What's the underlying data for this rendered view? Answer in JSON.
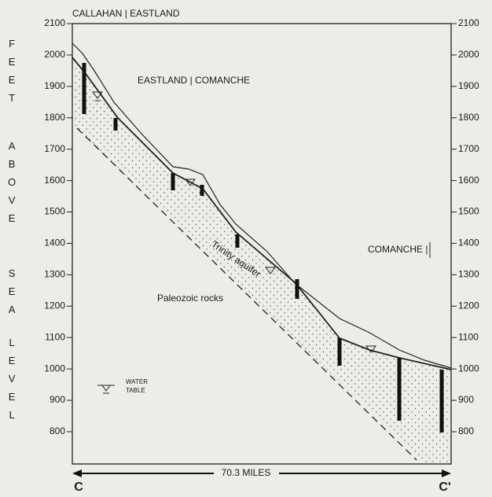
{
  "axis": {
    "words": [
      "FEET",
      "ABOVE",
      "SEA",
      "LEVEL"
    ],
    "ticks": [
      2100,
      2000,
      1900,
      1800,
      1700,
      1600,
      1500,
      1400,
      1300,
      1200,
      1100,
      1000,
      900,
      800
    ]
  },
  "labels": {
    "top_left": "CALLAHAN | EASTLAND",
    "middle": "EASTLAND | COMANCHE",
    "right": "COMANCHE |",
    "aquifer": "Trinity aquifer",
    "rocks": "Paleozoic rocks"
  },
  "legend": {
    "line1": "WATER",
    "line2": "TABLE"
  },
  "scale": {
    "distance": "70.3 MILES",
    "start": "C",
    "end": "C'"
  }
}
